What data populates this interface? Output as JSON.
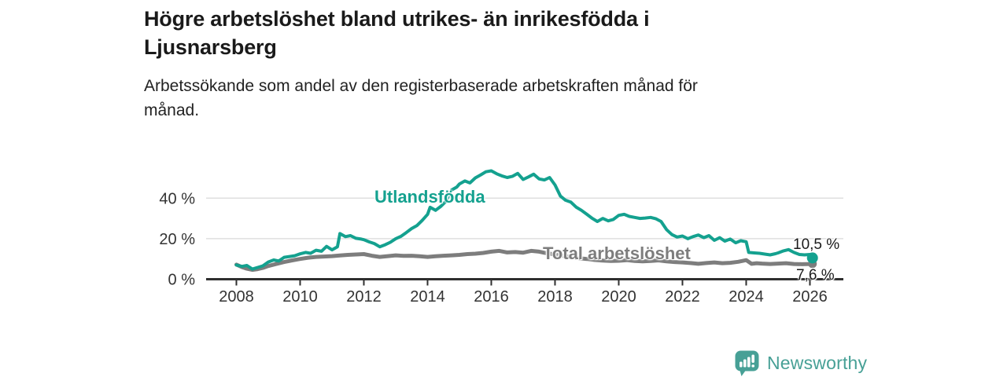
{
  "header": {
    "title_lines": {
      "0": "Högre arbetslöshet bland utrikes- än inrikesfödda i",
      "1": "Ljusnarsberg"
    },
    "subtitle_lines": {
      "0": "Arbetssökande som andel av den registerbaserade arbetskraften månad för",
      "1": "månad."
    }
  },
  "branding": {
    "name": "Newsworthy",
    "logo_icon": "bar-chart-speech-bubble-icon",
    "color": "#47a096"
  },
  "colors": {
    "accent_teal": "#14a18f",
    "series_gray": "#7d7d7d",
    "axis": "#2f2f2f",
    "gridline": "#d9d9d9",
    "tick_text": "#333333",
    "text_dark": "#1a1a1a"
  },
  "chart_data": {
    "type": "line",
    "unit": "%",
    "grid": "horizontal-only",
    "legend": "inline-series-labels",
    "xlim": [
      2007.05,
      2027.05
    ],
    "ylim": [
      0,
      56
    ],
    "x_ticks": [
      {
        "value": 2008,
        "label": "2008"
      },
      {
        "value": 2010,
        "label": "2010"
      },
      {
        "value": 2012,
        "label": "2012"
      },
      {
        "value": 2014,
        "label": "2014"
      },
      {
        "value": 2016,
        "label": "2016"
      },
      {
        "value": 2018,
        "label": "2018"
      },
      {
        "value": 2020,
        "label": "2020"
      },
      {
        "value": 2022,
        "label": "2022"
      },
      {
        "value": 2024,
        "label": "2024"
      },
      {
        "value": 2026,
        "label": "2026"
      }
    ],
    "y_ticks": [
      {
        "value": 0,
        "label": "0 %"
      },
      {
        "value": 20,
        "label": "20 %"
      },
      {
        "value": 40,
        "label": "40 %"
      }
    ],
    "series": [
      {
        "name": "Total arbetslöshet",
        "color": "#7d7d7d",
        "stroke_width": 5,
        "end_label": "7,6 %",
        "end_value": 7.6,
        "end_dot_radius": 5.5,
        "points": [
          [
            2008.0,
            7.2
          ],
          [
            2008.17,
            6.0
          ],
          [
            2008.33,
            5.2
          ],
          [
            2008.5,
            4.6
          ],
          [
            2008.67,
            5.0
          ],
          [
            2008.83,
            5.6
          ],
          [
            2009.0,
            6.5
          ],
          [
            2009.25,
            7.5
          ],
          [
            2009.5,
            8.5
          ],
          [
            2009.75,
            9.3
          ],
          [
            2010.0,
            10.0
          ],
          [
            2010.25,
            10.6
          ],
          [
            2010.5,
            11.0
          ],
          [
            2010.75,
            11.2
          ],
          [
            2011.0,
            11.4
          ],
          [
            2011.25,
            11.7
          ],
          [
            2011.5,
            12.0
          ],
          [
            2011.75,
            12.2
          ],
          [
            2012.0,
            12.4
          ],
          [
            2012.25,
            11.6
          ],
          [
            2012.5,
            11.0
          ],
          [
            2012.75,
            11.4
          ],
          [
            2013.0,
            11.8
          ],
          [
            2013.25,
            11.5
          ],
          [
            2013.5,
            11.6
          ],
          [
            2013.75,
            11.3
          ],
          [
            2014.0,
            11.0
          ],
          [
            2014.25,
            11.3
          ],
          [
            2014.5,
            11.6
          ],
          [
            2014.75,
            11.8
          ],
          [
            2015.0,
            12.0
          ],
          [
            2015.25,
            12.4
          ],
          [
            2015.5,
            12.6
          ],
          [
            2015.75,
            13.0
          ],
          [
            2016.0,
            13.6
          ],
          [
            2016.25,
            14.0
          ],
          [
            2016.5,
            13.2
          ],
          [
            2016.75,
            13.4
          ],
          [
            2017.0,
            13.1
          ],
          [
            2017.25,
            14.0
          ],
          [
            2017.5,
            13.6
          ],
          [
            2017.75,
            12.8
          ],
          [
            2018.0,
            12.2
          ],
          [
            2018.25,
            11.6
          ],
          [
            2018.5,
            11.0
          ],
          [
            2018.75,
            10.4
          ],
          [
            2019.0,
            10.0
          ],
          [
            2019.25,
            9.5
          ],
          [
            2019.5,
            9.2
          ],
          [
            2019.75,
            9.0
          ],
          [
            2020.0,
            9.1
          ],
          [
            2020.25,
            9.4
          ],
          [
            2020.5,
            9.0
          ],
          [
            2020.75,
            8.8
          ],
          [
            2021.0,
            9.0
          ],
          [
            2021.25,
            9.3
          ],
          [
            2021.5,
            8.8
          ],
          [
            2021.75,
            8.5
          ],
          [
            2022.0,
            8.3
          ],
          [
            2022.25,
            8.0
          ],
          [
            2022.5,
            7.6
          ],
          [
            2022.75,
            8.0
          ],
          [
            2023.0,
            8.3
          ],
          [
            2023.25,
            7.9
          ],
          [
            2023.5,
            8.1
          ],
          [
            2023.75,
            8.6
          ],
          [
            2024.0,
            9.4
          ],
          [
            2024.17,
            7.6
          ],
          [
            2024.33,
            7.9
          ],
          [
            2024.5,
            7.7
          ],
          [
            2024.75,
            7.5
          ],
          [
            2025.0,
            7.7
          ],
          [
            2025.25,
            7.9
          ],
          [
            2025.5,
            7.5
          ],
          [
            2025.75,
            7.4
          ],
          [
            2026.0,
            7.5
          ],
          [
            2026.08,
            7.6
          ]
        ]
      },
      {
        "name": "Utlandsfödda",
        "color": "#14a18f",
        "stroke_width": 4,
        "end_label": "10,5 %",
        "end_value": 10.5,
        "end_dot_radius": 7,
        "points": [
          [
            2008.0,
            7.0
          ],
          [
            2008.17,
            6.3
          ],
          [
            2008.33,
            6.8
          ],
          [
            2008.5,
            5.0
          ],
          [
            2008.67,
            5.8
          ],
          [
            2008.83,
            6.6
          ],
          [
            2009.0,
            8.5
          ],
          [
            2009.17,
            9.5
          ],
          [
            2009.33,
            9.0
          ],
          [
            2009.5,
            10.8
          ],
          [
            2009.67,
            11.2
          ],
          [
            2009.83,
            11.6
          ],
          [
            2010.0,
            12.5
          ],
          [
            2010.17,
            13.2
          ],
          [
            2010.33,
            12.8
          ],
          [
            2010.5,
            14.3
          ],
          [
            2010.67,
            13.8
          ],
          [
            2010.83,
            16.2
          ],
          [
            2011.0,
            14.5
          ],
          [
            2011.17,
            16.0
          ],
          [
            2011.25,
            22.5
          ],
          [
            2011.42,
            21.0
          ],
          [
            2011.58,
            21.5
          ],
          [
            2011.75,
            20.2
          ],
          [
            2011.92,
            19.8
          ],
          [
            2012.0,
            19.5
          ],
          [
            2012.17,
            18.4
          ],
          [
            2012.33,
            17.6
          ],
          [
            2012.5,
            16.0
          ],
          [
            2012.67,
            17.0
          ],
          [
            2012.83,
            18.2
          ],
          [
            2013.0,
            20.0
          ],
          [
            2013.17,
            21.2
          ],
          [
            2013.33,
            23.0
          ],
          [
            2013.5,
            25.0
          ],
          [
            2013.67,
            26.5
          ],
          [
            2013.83,
            29.0
          ],
          [
            2014.0,
            32.0
          ],
          [
            2014.08,
            35.5
          ],
          [
            2014.25,
            34.0
          ],
          [
            2014.42,
            36.0
          ],
          [
            2014.58,
            38.5
          ],
          [
            2014.75,
            44.0
          ],
          [
            2014.92,
            45.5
          ],
          [
            2015.0,
            47.0
          ],
          [
            2015.17,
            48.5
          ],
          [
            2015.33,
            47.5
          ],
          [
            2015.5,
            50.0
          ],
          [
            2015.67,
            51.5
          ],
          [
            2015.83,
            53.0
          ],
          [
            2016.0,
            53.5
          ],
          [
            2016.17,
            52.0
          ],
          [
            2016.33,
            51.0
          ],
          [
            2016.5,
            50.2
          ],
          [
            2016.67,
            50.8
          ],
          [
            2016.83,
            52.2
          ],
          [
            2017.0,
            49.2
          ],
          [
            2017.17,
            50.5
          ],
          [
            2017.33,
            51.8
          ],
          [
            2017.5,
            49.5
          ],
          [
            2017.67,
            49.0
          ],
          [
            2017.83,
            50.2
          ],
          [
            2018.0,
            46.5
          ],
          [
            2018.17,
            41.0
          ],
          [
            2018.33,
            39.0
          ],
          [
            2018.5,
            38.0
          ],
          [
            2018.67,
            35.5
          ],
          [
            2018.83,
            34.0
          ],
          [
            2019.0,
            32.0
          ],
          [
            2019.17,
            30.0
          ],
          [
            2019.33,
            28.5
          ],
          [
            2019.5,
            30.0
          ],
          [
            2019.67,
            28.8
          ],
          [
            2019.83,
            29.5
          ],
          [
            2020.0,
            31.5
          ],
          [
            2020.17,
            32.0
          ],
          [
            2020.33,
            31.0
          ],
          [
            2020.5,
            30.5
          ],
          [
            2020.67,
            30.0
          ],
          [
            2020.83,
            30.2
          ],
          [
            2021.0,
            30.5
          ],
          [
            2021.17,
            29.8
          ],
          [
            2021.33,
            28.5
          ],
          [
            2021.5,
            24.5
          ],
          [
            2021.67,
            22.0
          ],
          [
            2021.83,
            20.8
          ],
          [
            2022.0,
            21.3
          ],
          [
            2022.17,
            20.0
          ],
          [
            2022.33,
            21.0
          ],
          [
            2022.5,
            21.8
          ],
          [
            2022.67,
            20.5
          ],
          [
            2022.83,
            21.5
          ],
          [
            2023.0,
            19.2
          ],
          [
            2023.17,
            20.5
          ],
          [
            2023.33,
            18.8
          ],
          [
            2023.5,
            19.8
          ],
          [
            2023.67,
            18.0
          ],
          [
            2023.83,
            19.0
          ],
          [
            2024.0,
            18.5
          ],
          [
            2024.08,
            13.2
          ],
          [
            2024.25,
            13.0
          ],
          [
            2024.42,
            12.8
          ],
          [
            2024.58,
            12.4
          ],
          [
            2024.75,
            12.0
          ],
          [
            2024.92,
            12.6
          ],
          [
            2025.0,
            13.0
          ],
          [
            2025.17,
            14.0
          ],
          [
            2025.33,
            14.6
          ],
          [
            2025.5,
            13.2
          ],
          [
            2025.67,
            12.2
          ],
          [
            2025.83,
            12.0
          ],
          [
            2026.0,
            12.2
          ],
          [
            2026.08,
            10.5
          ]
        ]
      }
    ]
  }
}
